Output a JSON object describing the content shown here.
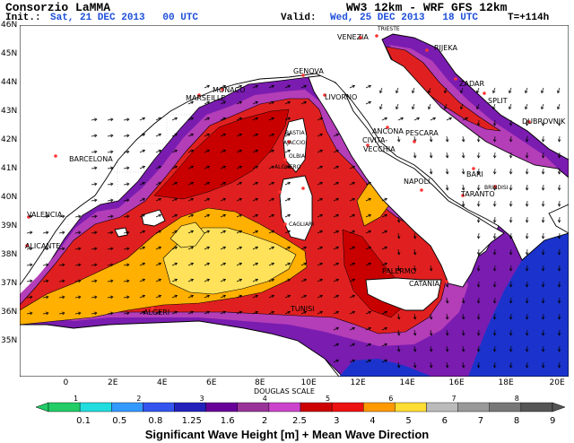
{
  "header": {
    "org": "Consorzio LaMMA",
    "model": "WW3 12km - WRF GFS 12km",
    "init_label": "Init.:",
    "init_value": "Sat, 21 DEC 2013   00 UTC",
    "valid_label": "Valid:",
    "valid_value": "Wed, 25 DEC 2013   18 UTC",
    "lead_time": "T=+114h"
  },
  "map": {
    "lat_labels": [
      "46N",
      "45N",
      "44N",
      "43N",
      "42N",
      "41N",
      "40N",
      "39N",
      "38N",
      "37N",
      "36N",
      "35N"
    ],
    "lon_labels": [
      "0",
      "2E",
      "4E",
      "6E",
      "8E",
      "10E",
      "12E",
      "14E",
      "16E",
      "18E",
      "20E"
    ],
    "cities": [
      {
        "name": "TRIESTE",
        "small": true
      },
      {
        "name": "VENEZIA",
        "small": false
      },
      {
        "name": "RIJEKA",
        "small": false
      },
      {
        "name": "MONACO",
        "small": false
      },
      {
        "name": "GENOVA",
        "small": false
      },
      {
        "name": "ZADAR",
        "small": false
      },
      {
        "name": "MARSEILLE",
        "small": false
      },
      {
        "name": "LIVORNO",
        "small": false
      },
      {
        "name": "ANCONA",
        "small": false
      },
      {
        "name": "SPLIT",
        "small": false
      },
      {
        "name": "DUBROVNIK",
        "small": false
      },
      {
        "name": "BASTIA",
        "small": true
      },
      {
        "name": "AJACCIO",
        "small": true
      },
      {
        "name": "CIVITA-",
        "small": false
      },
      {
        "name": "VECCHIA",
        "small": false
      },
      {
        "name": "PESCARA",
        "small": false
      },
      {
        "name": "BARCELONA",
        "small": false
      },
      {
        "name": "OLBIA",
        "small": true
      },
      {
        "name": "ALGHERO",
        "small": true
      },
      {
        "name": "NAPOLI",
        "small": false
      },
      {
        "name": "BARI",
        "small": false
      },
      {
        "name": "BRINDISI",
        "small": true
      },
      {
        "name": "TARANTO",
        "small": false
      },
      {
        "name": "VALENCIA",
        "small": false
      },
      {
        "name": "CAGLIARI",
        "small": true
      },
      {
        "name": "ALICANTE",
        "small": false
      },
      {
        "name": "PALERMO",
        "small": false
      },
      {
        "name": "CATANIA",
        "small": false
      },
      {
        "name": "TUNISI",
        "small": false
      },
      {
        "name": "ALGERI",
        "small": false
      }
    ],
    "douglas_label": "DOUGLAS SCALE"
  },
  "legend": {
    "douglas_values": [
      "1",
      "2",
      "3",
      "4",
      "5",
      "6",
      "7",
      "8"
    ],
    "thresholds": [
      "0.1",
      "0.5",
      "0.8",
      "1.25",
      "1.6",
      "2",
      "2.5",
      "3",
      "4",
      "5",
      "6",
      "7",
      "8",
      "9"
    ],
    "colors": [
      "#22cc66",
      "#22dddd",
      "#3399ff",
      "#3355ee",
      "#2222bb",
      "#660099",
      "#993399",
      "#cc44cc",
      "#cc0000",
      "#ee1111",
      "#ff9900",
      "#ffdd33",
      "#bbbbbb",
      "#999999",
      "#777777",
      "#555555"
    ],
    "caption": "Significant Wave Height [m] + Mean Wave Direction"
  },
  "palette": {
    "land": "#ffffff",
    "coast": "#000000",
    "grid": "#bbbbbb",
    "very_low": "#1b33cc",
    "low": "#7a1cb0",
    "mid_low": "#b43db8",
    "mid": "#e02020",
    "high": "#c80000",
    "higher": "#ffb000",
    "peak": "#ffe25a",
    "arrow": "#000000"
  }
}
